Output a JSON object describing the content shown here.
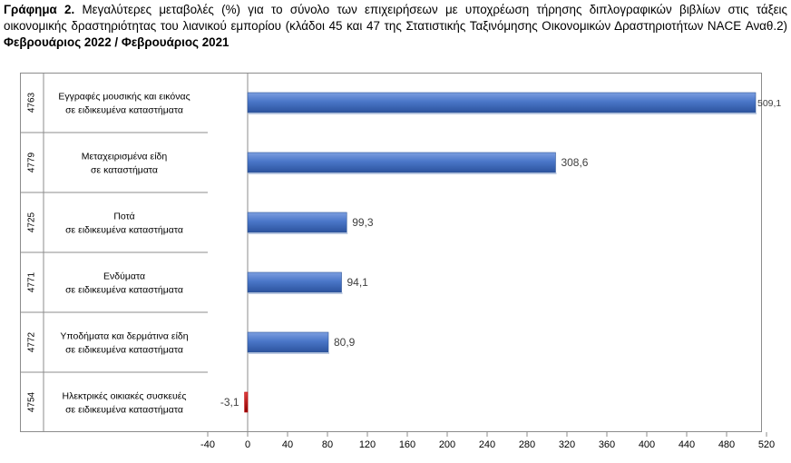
{
  "title": {
    "prefix": "Γράφημα 2.",
    "text": "Μεγαλύτερες μεταβολές (%) για το σύνολο των επιχειρήσεων με υποχρέωση τήρησης διπλογραφικών βιβλίων στις τάξεις οικονομικής δραστηριότητας του λιανικού εμπορίου (κλάδοι 45 και 47 της Στατιστικής Ταξινόμησης Οικονομικών Δραστηριοτήτων NACE Αναθ.2)",
    "period": "Φεβρουάριος 2022 / Φεβρουάριος 2021"
  },
  "colors": {
    "bar": "#4472c4",
    "bar_dark": "#2f5597",
    "negative_bar": "#c00000",
    "axis": "#8c8c8c"
  },
  "chart_data": {
    "type": "bar",
    "orientation": "horizontal",
    "codes": [
      "4763",
      "4779",
      "4725",
      "4771",
      "4772",
      "4754"
    ],
    "categories": [
      [
        "Εγγραφές μουσικής και εικόνας",
        "σε ειδικευμένα καταστήματα"
      ],
      [
        "Μεταχειρισμένα είδη",
        "σε καταστήματα"
      ],
      [
        "Ποτά",
        "σε ειδικευμένα καταστήματα"
      ],
      [
        "Ενδύματα",
        "σε ειδικευμένα καταστήματα"
      ],
      [
        "Υποδήματα και δερμάτινα είδη",
        "σε ειδικευμένα καταστήματα"
      ],
      [
        "Ηλεκτρικές οικιακές συσκευές",
        "σε ειδικευμένα καταστήματα"
      ]
    ],
    "values": [
      509.1,
      308.6,
      99.3,
      94.1,
      80.9,
      -3.1
    ],
    "value_labels": [
      "509,1",
      "308,6",
      "99,3",
      "94,1",
      "80,9",
      "-3,1"
    ],
    "xlim": [
      -40,
      520
    ],
    "xticks": [
      -40,
      0,
      40,
      80,
      120,
      160,
      200,
      240,
      280,
      320,
      360,
      400,
      440,
      480,
      520
    ],
    "grid": false,
    "legend": "none"
  }
}
